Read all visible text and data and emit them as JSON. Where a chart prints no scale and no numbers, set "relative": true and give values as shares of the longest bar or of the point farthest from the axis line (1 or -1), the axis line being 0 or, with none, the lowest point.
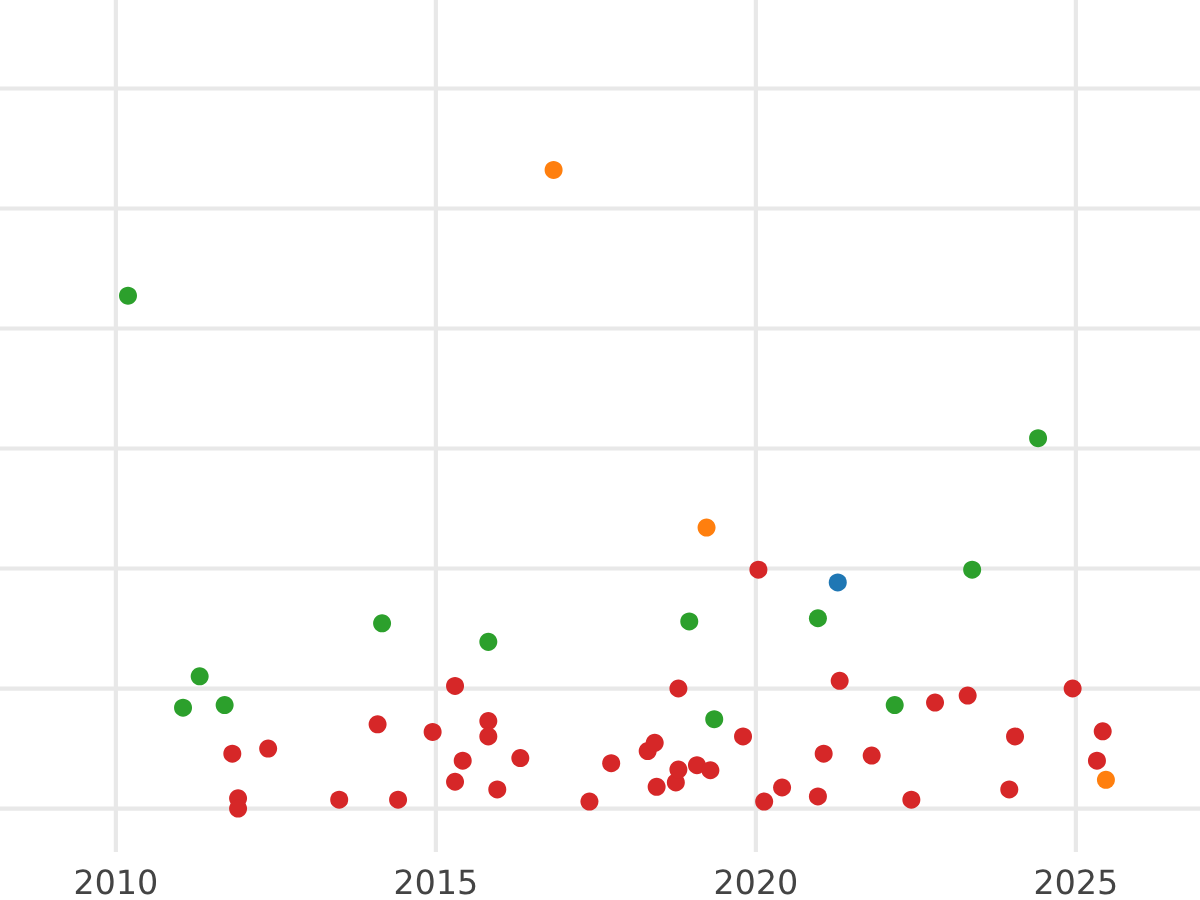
{
  "chart_data": {
    "type": "scatter",
    "relative": true,
    "grid": true,
    "marker": "circle",
    "xlim": [
      2008.19,
      2026.94
    ],
    "xticks": [
      2010,
      2015,
      2020,
      2025
    ],
    "series": [
      {
        "color": "#1f77b4",
        "x": [
          2021.28
        ],
        "values": [
          0.354
        ]
      },
      {
        "color": "#ff7f0e",
        "x": [
          2016.84,
          2019.23,
          2025.47
        ],
        "values": [
          1.0,
          0.44,
          0.045
        ]
      },
      {
        "color": "#2ca02c",
        "x": [
          2010.19,
          2011.05,
          2011.31,
          2011.7,
          2014.16,
          2015.82,
          2018.96,
          2019.35,
          2020.97,
          2021.09,
          2022.17,
          2023.38,
          2024.41
        ],
        "values": [
          0.803,
          0.158,
          0.207,
          0.162,
          0.29,
          0.261,
          0.293,
          0.14,
          0.298,
          null,
          0.162,
          0.374,
          0.58
        ]
      },
      {
        "color": "#d62728",
        "x": [
          2011.82,
          2011.91,
          2011.91,
          2012.38,
          2013.49,
          2014.09,
          2014.41,
          2014.95,
          2015.3,
          2015.3,
          2015.42,
          2015.82,
          2015.82,
          2015.96,
          2016.32,
          2017.4,
          2017.74,
          2018.31,
          2018.42,
          2018.45,
          2018.75,
          2018.79,
          2018.79,
          2019.08,
          2019.29,
          2019.8,
          2020.04,
          2020.13,
          2020.41,
          2020.97,
          2021.06,
          2021.31,
          2021.81,
          2022.43,
          2022.8,
          2023.31,
          2023.96,
          2024.05,
          2024.95,
          2025.33,
          2025.42
        ],
        "values": [
          0.086,
          0.016,
          0.0,
          0.094,
          0.014,
          0.132,
          0.014,
          0.12,
          0.192,
          0.042,
          0.075,
          0.137,
          0.113,
          0.03,
          0.079,
          0.011,
          0.071,
          0.09,
          0.103,
          0.034,
          0.041,
          0.061,
          0.188,
          0.068,
          0.06,
          0.113,
          0.374,
          0.011,
          0.033,
          0.019,
          0.086,
          0.2,
          0.083,
          0.014,
          0.166,
          0.177,
          0.03,
          0.113,
          0.188,
          0.075,
          0.121
        ]
      }
    ]
  }
}
